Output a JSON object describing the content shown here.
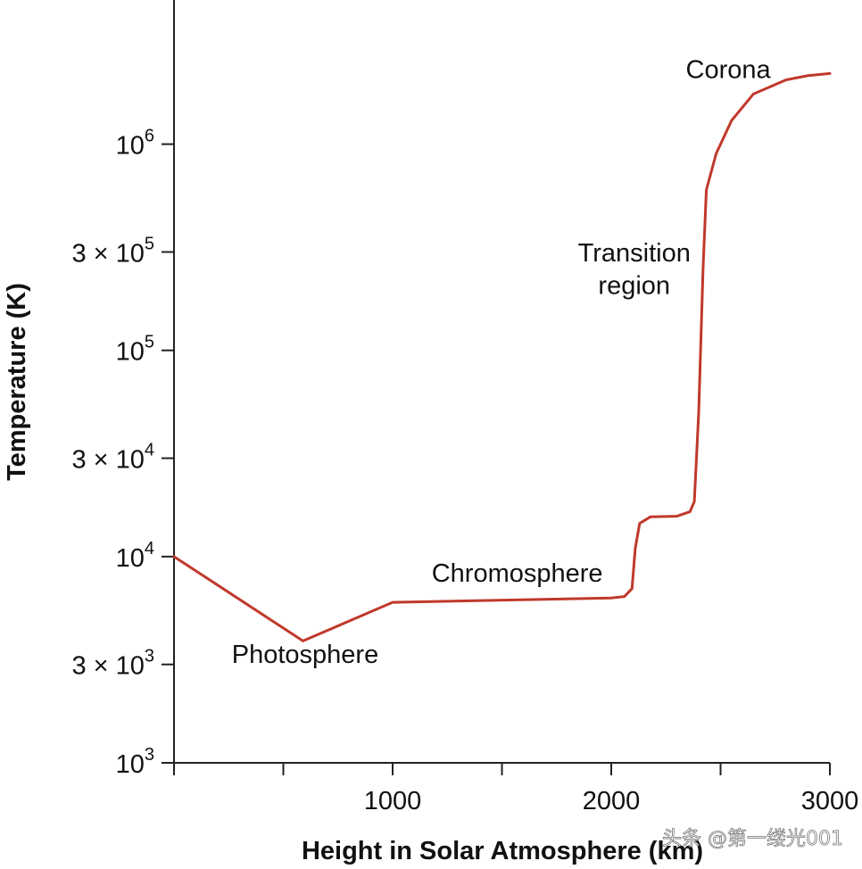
{
  "chart_data": {
    "type": "line",
    "title": "",
    "xlabel": "Height in Solar Atmosphere (km)",
    "ylabel": "Temperature (K)",
    "xlim": [
      0,
      3000
    ],
    "ylim": [
      1000,
      5000000
    ],
    "y_scale": "log",
    "grid": false,
    "x_ticks": [
      0,
      500,
      1000,
      1500,
      2000,
      2500,
      3000
    ],
    "x_tick_labels": [
      {
        "value": 1000,
        "label": "1000"
      },
      {
        "value": 2000,
        "label": "2000"
      },
      {
        "value": 3000,
        "label": "3000"
      }
    ],
    "y_tick_labels": [
      {
        "value": 1000,
        "coef": "",
        "base": "10",
        "exp": "3"
      },
      {
        "value": 3000,
        "coef": "3 × ",
        "base": "10",
        "exp": "3"
      },
      {
        "value": 10000,
        "coef": "",
        "base": "10",
        "exp": "4"
      },
      {
        "value": 30000,
        "coef": "3 × ",
        "base": "10",
        "exp": "4"
      },
      {
        "value": 100000,
        "coef": "",
        "base": "10",
        "exp": "5"
      },
      {
        "value": 300000,
        "coef": "3 × ",
        "base": "10",
        "exp": "5"
      },
      {
        "value": 1000000,
        "coef": "",
        "base": "10",
        "exp": "6"
      }
    ],
    "series": [
      {
        "color": "#c0392b",
        "points": [
          [
            0,
            10000
          ],
          [
            590,
            3900
          ],
          [
            1000,
            6000
          ],
          [
            2000,
            6300
          ],
          [
            2060,
            6400
          ],
          [
            2095,
            7000
          ],
          [
            2110,
            11000
          ],
          [
            2130,
            14500
          ],
          [
            2180,
            15600
          ],
          [
            2300,
            15700
          ],
          [
            2360,
            16500
          ],
          [
            2380,
            18500
          ],
          [
            2400,
            50000
          ],
          [
            2420,
            250000
          ],
          [
            2435,
            600000
          ],
          [
            2480,
            900000
          ],
          [
            2550,
            1300000
          ],
          [
            2650,
            1750000
          ],
          [
            2800,
            2050000
          ],
          [
            2900,
            2150000
          ],
          [
            3000,
            2200000
          ]
        ]
      }
    ],
    "annotations": [
      {
        "text": "Photosphere",
        "x": 600,
        "y": 3050
      },
      {
        "text": "Chromosphere",
        "x": 1570,
        "y": 7550
      },
      {
        "text": "Transition",
        "x": 2105,
        "y": 270000
      },
      {
        "text": "region",
        "x": 2105,
        "y": 188000
      },
      {
        "text": "Corona",
        "x": 2535,
        "y": 2090000
      }
    ]
  },
  "watermark": "头条 @第一缕光001"
}
